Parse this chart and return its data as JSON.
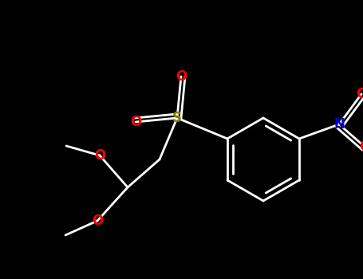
{
  "bg_color": "#000000",
  "bond_color": "#ffffff",
  "line_width": 2.0,
  "atoms": {
    "S": {
      "color": "#808000"
    },
    "O": {
      "color": "#ff0000"
    },
    "N": {
      "color": "#0000cd"
    }
  },
  "figsize": [
    4.55,
    3.5
  ],
  "dpi": 100
}
